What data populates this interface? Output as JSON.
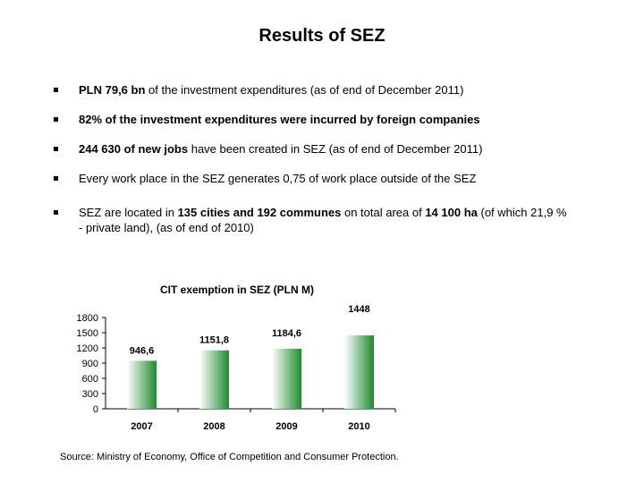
{
  "title": "Results of SEZ",
  "bullets": [
    {
      "lines": [
        [
          {
            "t": "PLN 79,6 bn",
            "b": true
          },
          {
            "t": " of the investment expenditures (as of end of December 2011)",
            "b": false
          }
        ]
      ]
    },
    {
      "lines": [
        [
          {
            "t": "82% of the investment expenditures were incurred by foreign companies",
            "b": true
          }
        ]
      ]
    },
    {
      "lines": [
        [
          {
            "t": "244 630 of new jobs",
            "b": true
          },
          {
            "t": " have been created in SEZ (as of end of December 2011)",
            "b": false
          }
        ]
      ]
    },
    {
      "lines": [
        [
          {
            "t": "Every work place in the SEZ generates 0,75 of work place outside of the SEZ",
            "b": false
          }
        ]
      ]
    },
    {
      "lines": [
        [
          {
            "t": "SEZ are located in ",
            "b": false
          },
          {
            "t": "135 cities and 192 communes",
            "b": true
          },
          {
            "t": " on total area of ",
            "b": false
          },
          {
            "t": "14 100 ha",
            "b": true
          },
          {
            "t": " (of which 21,9 %",
            "b": false
          }
        ],
        [
          {
            "t": "- private land), (as of end of 2010)",
            "b": false
          }
        ]
      ]
    }
  ],
  "chart_data": {
    "type": "bar",
    "title": "CIT exemption in SEZ (PLN M)",
    "categories": [
      "2007",
      "2008",
      "2009",
      "2010"
    ],
    "values": [
      946.6,
      1151.8,
      1184.6,
      1448
    ],
    "value_labels": [
      "946,6",
      "1151,8",
      "1184,6",
      "1448"
    ],
    "yticks": [
      0,
      300,
      600,
      900,
      1200,
      1500,
      1800
    ],
    "ylim": [
      0,
      1800
    ],
    "bar_color_top": "#ffffff",
    "bar_color_bottom": "#1f8a2e"
  },
  "source": "Source: Ministry of Economy, Office of Competition and Consumer Protection."
}
